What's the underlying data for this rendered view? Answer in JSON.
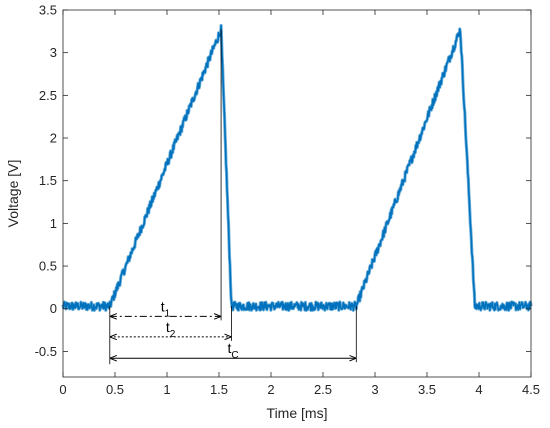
{
  "chart_data": {
    "type": "line",
    "xlabel": "Time [ms]",
    "ylabel": "Voltage [V]",
    "xlim": [
      0,
      4.5
    ],
    "ylim": [
      -0.8,
      3.5
    ],
    "grid": false,
    "x_ticks": [
      "0",
      "0.5",
      "1",
      "1.5",
      "2",
      "2.5",
      "3",
      "3.5",
      "4",
      "4.5"
    ],
    "y_ticks": [
      "-0.5",
      "0",
      "0.5",
      "1",
      "1.5",
      "2",
      "2.5",
      "3",
      "3.5"
    ],
    "line_color": "#0072BD",
    "series": [
      {
        "x": [
          0,
          0.45,
          1.52,
          1.62,
          2.82,
          3.82,
          3.96,
          4.5
        ],
        "y": [
          0.03,
          0.03,
          3.27,
          0.03,
          0.03,
          3.27,
          0.03,
          0.03
        ],
        "noise_amplitude": 0.05
      }
    ],
    "annotations": [
      {
        "name": "t",
        "sub": "1",
        "x_start": 0.45,
        "x_end": 1.52,
        "y": -0.09,
        "line_style": "dash-dot"
      },
      {
        "name": "t",
        "sub": "2",
        "x_start": 0.45,
        "x_end": 1.62,
        "y": -0.33,
        "line_style": "dotted"
      },
      {
        "name": "t",
        "sub": "C",
        "x_start": 0.45,
        "x_end": 2.82,
        "y": -0.58,
        "line_style": "solid"
      }
    ]
  }
}
